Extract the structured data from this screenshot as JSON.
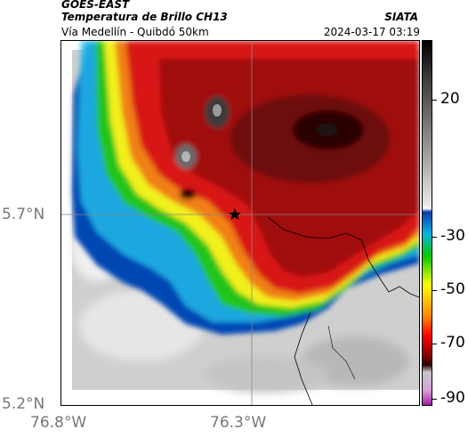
{
  "header": {
    "satellite": "GOES-EAST",
    "product": "Temperatura de Brillo CH13",
    "location": "Vía Medellín - Quibdó 50km",
    "organization": "SIATA",
    "timestamp": "2024-03-17 03:19"
  },
  "map": {
    "lat_ticks": [
      "5.7°N",
      "5.2°N"
    ],
    "lon_ticks": [
      "76.8°W",
      "76.3°W"
    ],
    "marker": "star-icon",
    "colors": {
      "clear": "#d0d0d0",
      "edge_blue": "#0046b4",
      "edge_cyan": "#20b8e8",
      "green": "#22c41e",
      "yellow": "#f2f01e",
      "orange": "#f08018",
      "red": "#d81414",
      "dark_red": "#7a0a0a",
      "black": "#1a1a1a",
      "border_line": "#000000"
    }
  },
  "colorbar": {
    "labels": [
      "20",
      "-30",
      "-50",
      "-70",
      "-90"
    ],
    "colors": [
      "#000000",
      "#ffffff",
      "#0ab4e6",
      "#00c800",
      "#ffff00",
      "#ff0000",
      "#500000",
      "#c0c0c0",
      "#b020b0"
    ]
  }
}
